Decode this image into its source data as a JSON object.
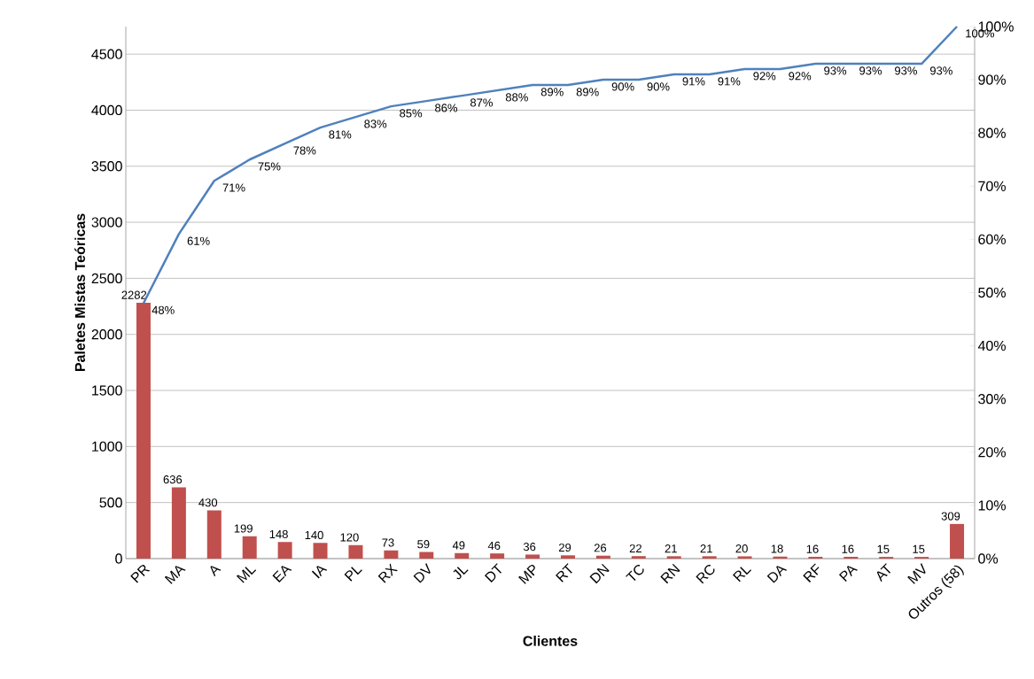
{
  "chart_data": {
    "type": "bar",
    "xlabel": "Clientes",
    "ylabel": "Paletes Mistas Teóricas",
    "categories": [
      "PR",
      "MA",
      "A",
      "ML",
      "EA",
      "IA",
      "PL",
      "RX",
      "DV",
      "JL",
      "DT",
      "MP",
      "RT",
      "DN",
      "TC",
      "RN",
      "RC",
      "RL",
      "DA",
      "RF",
      "PA",
      "AT",
      "MV",
      "Outros (58)"
    ],
    "series": [
      {
        "color": "#c0504d",
        "data_labels": true,
        "values": [
          2282,
          636,
          430,
          199,
          148,
          140,
          120,
          73,
          59,
          49,
          46,
          36,
          29,
          26,
          22,
          21,
          21,
          20,
          18,
          16,
          16,
          15,
          15,
          309
        ]
      },
      {
        "type": "line",
        "axis": "y2",
        "color": "#4f81bd",
        "line_style": "solid",
        "marker": "none",
        "values": [
          48,
          61,
          71,
          75,
          78,
          81,
          83,
          85,
          86,
          87,
          88,
          89,
          89,
          90,
          90,
          91,
          91,
          92,
          92,
          93,
          93,
          93,
          93,
          100
        ],
        "value_labels": [
          "48%",
          "61%",
          "71%",
          "75%",
          "78%",
          "81%",
          "83%",
          "85%",
          "86%",
          "87%",
          "88%",
          "89%",
          "89%",
          "90%",
          "90%",
          "91%",
          "91%",
          "92%",
          "92%",
          "93%",
          "93%",
          "93%",
          "93%",
          "100%"
        ]
      }
    ],
    "ylim": [
      0,
      4746
    ],
    "yticks": [
      0,
      500,
      1000,
      1500,
      2000,
      2500,
      3000,
      3500,
      4000,
      4500
    ],
    "y2lim": [
      0,
      100
    ],
    "y2ticks": [
      {
        "value": 0,
        "label": "0%"
      },
      {
        "value": 10,
        "label": "10%"
      },
      {
        "value": 20,
        "label": "20%"
      },
      {
        "value": 30,
        "label": "30%"
      },
      {
        "value": 40,
        "label": "40%"
      },
      {
        "value": 50,
        "label": "50%"
      },
      {
        "value": 60,
        "label": "60%"
      },
      {
        "value": 70,
        "label": "70%"
      },
      {
        "value": 80,
        "label": "80%"
      },
      {
        "value": 90,
        "label": "90%"
      },
      {
        "value": 100,
        "label": "100%"
      }
    ],
    "grid": "y"
  }
}
